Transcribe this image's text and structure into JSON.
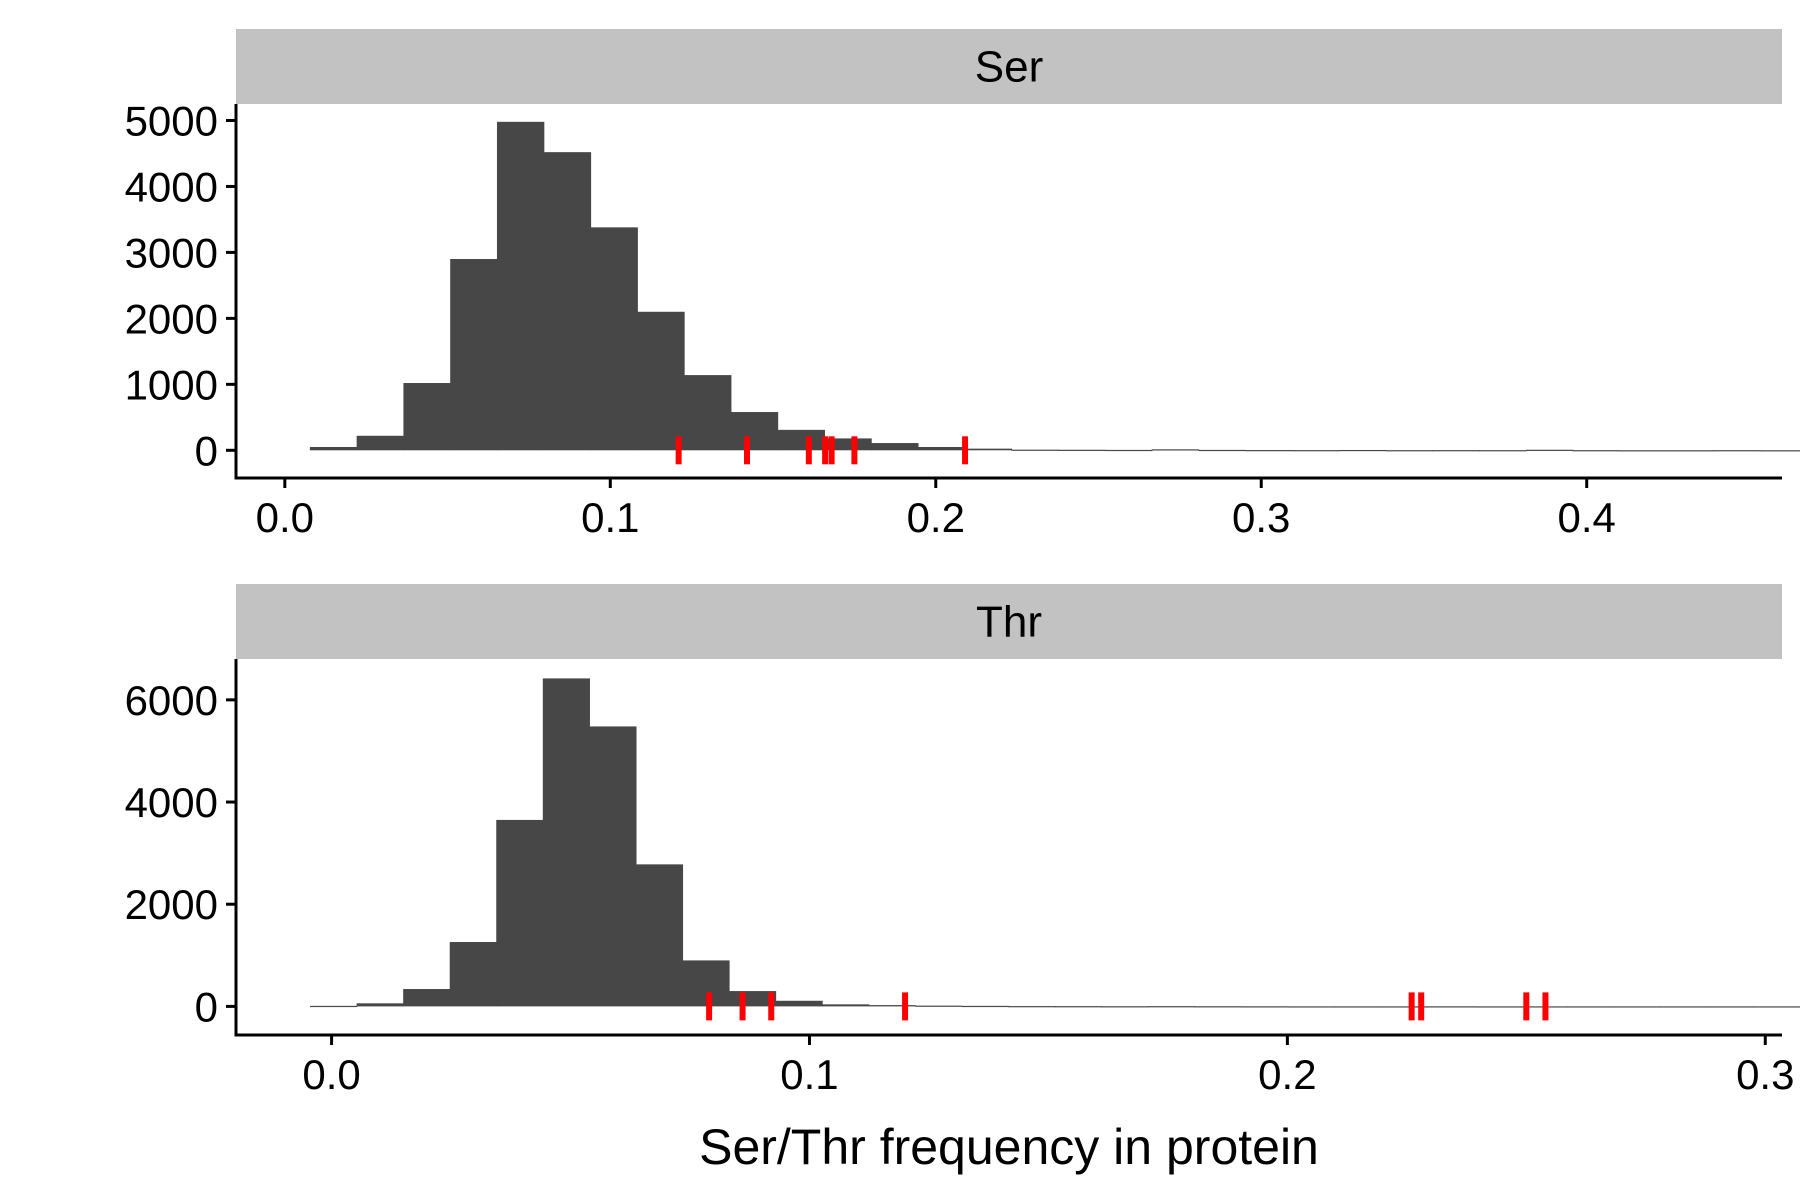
{
  "chart_data": {
    "type": "bar",
    "subtype": "histogram",
    "xlabel": "Ser/Thr frequency in protein",
    "ylabel": "",
    "grid": false,
    "colors": {
      "bar": "#474747",
      "rug": "#ff0000",
      "strip": "#c2c2c2"
    },
    "panels": [
      {
        "title": "Ser",
        "xlim": [
          -0.015,
          0.46
        ],
        "ylim": [
          -420,
          5250
        ],
        "xticks": [
          0.0,
          0.1,
          0.2,
          0.3,
          0.4
        ],
        "xtick_labels": [
          "0.0",
          "0.1",
          "0.2",
          "0.3",
          "0.4"
        ],
        "yticks": [
          0,
          1000,
          2000,
          3000,
          4000,
          5000
        ],
        "ytick_labels": [
          "0",
          "1000",
          "2000",
          "3000",
          "4000",
          "5000"
        ],
        "bin_width": 0.01437,
        "bin_start": 0.0077,
        "counts": [
          50,
          220,
          1020,
          2900,
          4980,
          4520,
          3380,
          2100,
          1140,
          580,
          310,
          180,
          110,
          50,
          25,
          10,
          8,
          6,
          15,
          6,
          4,
          3,
          5,
          2,
          3,
          2,
          8,
          2,
          1,
          1,
          2,
          1,
          1,
          1
        ],
        "rug": [
          0.121,
          0.142,
          0.161,
          0.166,
          0.168,
          0.175,
          0.209
        ]
      },
      {
        "title": "Thr",
        "xlim": [
          -0.02,
          0.3035
        ],
        "ylim": [
          -560,
          6800
        ],
        "xticks": [
          0.0,
          0.1,
          0.2,
          0.3
        ],
        "xtick_labels": [
          "0.0",
          "0.1",
          "0.2",
          "0.3"
        ],
        "yticks": [
          0,
          2000,
          4000,
          6000
        ],
        "ytick_labels": [
          "0",
          "2000",
          "4000",
          "6000"
        ],
        "bin_width": 0.00974,
        "bin_start": -0.0045,
        "counts": [
          10,
          60,
          340,
          1260,
          3650,
          6420,
          5480,
          2780,
          900,
          300,
          110,
          40,
          25,
          15,
          10,
          6,
          5,
          3,
          5,
          3,
          2,
          1,
          1,
          1,
          2,
          1,
          1,
          1,
          1,
          1,
          1,
          1,
          1
        ],
        "rug": [
          0.079,
          0.086,
          0.092,
          0.12,
          0.226,
          0.228,
          0.25,
          0.254
        ]
      }
    ]
  }
}
